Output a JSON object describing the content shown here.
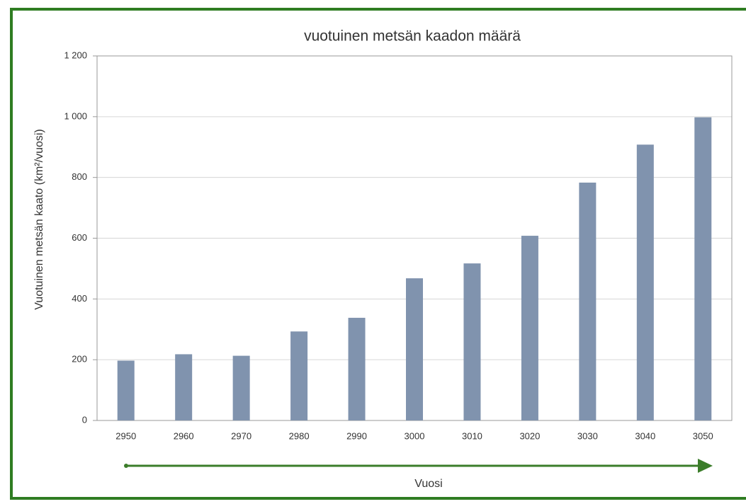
{
  "chart_data": {
    "type": "bar",
    "title": "vuotuinen metsän kaadon määrä",
    "y_label": "Vuotuinen metsän kaato (km²/vuosi)",
    "x_label": "Vuosi",
    "categories": [
      "2950",
      "2960",
      "2970",
      "2980",
      "2990",
      "3000",
      "3010",
      "3020",
      "3030",
      "3040",
      "3050"
    ],
    "values": [
      197,
      218,
      213,
      293,
      338,
      468,
      517,
      608,
      783,
      908,
      998
    ],
    "color": "#8093ae",
    "ylim": [
      0,
      1200
    ],
    "yticks": [
      0,
      200,
      400,
      600,
      800,
      {
        "value": 1000,
        "label": "1 000"
      },
      {
        "value": 1200,
        "label": "1 200"
      }
    ],
    "grid": true
  }
}
